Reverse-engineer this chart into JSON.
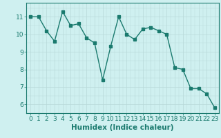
{
  "x": [
    0,
    1,
    2,
    3,
    4,
    5,
    6,
    7,
    8,
    9,
    10,
    11,
    12,
    13,
    14,
    15,
    16,
    17,
    18,
    19,
    20,
    21,
    22,
    23
  ],
  "y": [
    11.0,
    11.0,
    10.2,
    9.6,
    11.3,
    10.5,
    10.6,
    9.8,
    9.5,
    7.4,
    9.3,
    11.0,
    10.0,
    9.7,
    10.3,
    10.4,
    10.2,
    10.0,
    8.1,
    8.0,
    6.9,
    6.9,
    6.6,
    5.8
  ],
  "line_color": "#1a7a6e",
  "bg_color": "#cff0f0",
  "grid_color": "#b8d8d8",
  "xlabel": "Humidex (Indice chaleur)",
  "xlim": [
    -0.5,
    23.5
  ],
  "ylim": [
    5.5,
    11.8
  ],
  "yticks": [
    6,
    7,
    8,
    9,
    10,
    11
  ],
  "xticks": [
    0,
    1,
    2,
    3,
    4,
    5,
    6,
    7,
    8,
    9,
    10,
    11,
    12,
    13,
    14,
    15,
    16,
    17,
    18,
    19,
    20,
    21,
    22,
    23
  ],
  "marker": "s",
  "markersize": 2.5,
  "linewidth": 1.0,
  "xlabel_fontsize": 7.5,
  "tick_fontsize": 6.5
}
